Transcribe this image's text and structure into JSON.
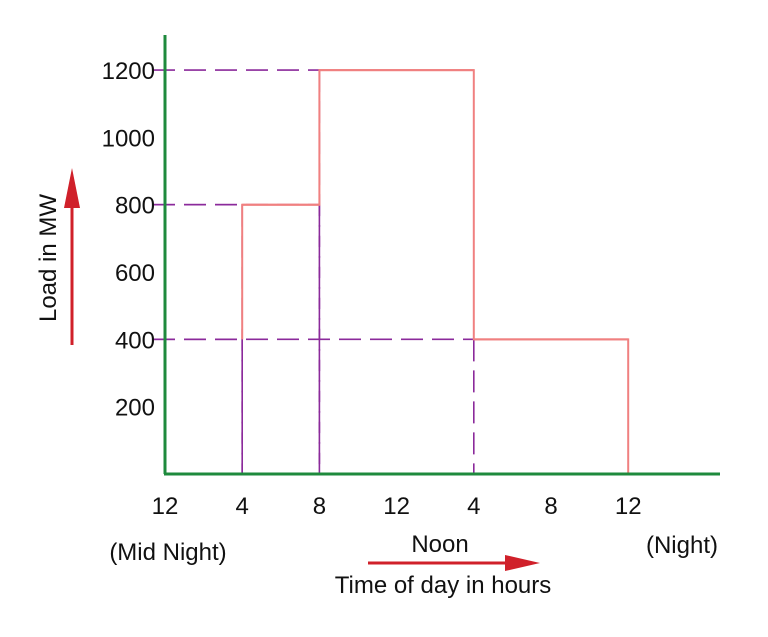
{
  "chart_data": {
    "type": "line",
    "step": true,
    "ylabel": "Load in MW",
    "xlabel": "Time of day in hours",
    "y_ticks": [
      "200",
      "400",
      "600",
      "800",
      "1000",
      "1200"
    ],
    "y_tick_values": [
      200,
      400,
      600,
      800,
      1000,
      1200
    ],
    "ylim": [
      0,
      1200
    ],
    "x_ticks": [
      "12",
      "4",
      "8",
      "12",
      "4",
      "8",
      "12"
    ],
    "x_tick_hours": [
      0,
      4,
      8,
      12,
      16,
      20,
      24
    ],
    "x_annotations": {
      "midnight": "(Mid Night)",
      "noon": "Noon",
      "night": "(Night)"
    },
    "series": [
      {
        "segments": [
          {
            "from_hour": 4,
            "to_hour": 8,
            "load": 800
          },
          {
            "from_hour": 8,
            "to_hour": 16,
            "load": 1200
          },
          {
            "from_hour": 16,
            "to_hour": 24,
            "load": 400
          }
        ]
      }
    ],
    "guide_lines": [
      {
        "hour": 4,
        "load": 400
      },
      {
        "hour": 4,
        "load": 800
      },
      {
        "hour": 8,
        "load": 800
      },
      {
        "hour": 8,
        "load": 1200
      },
      {
        "hour": 16,
        "load": 400
      }
    ],
    "colors": {
      "axes": "#1e8a3c",
      "series": "#f08080",
      "guides": "#8b2a9b",
      "arrow": "#d0202a"
    },
    "grid": false
  }
}
